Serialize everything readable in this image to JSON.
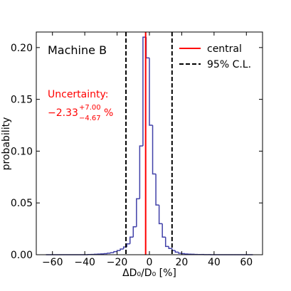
{
  "chart_data": {
    "type": "histogram",
    "panel_label": "Machine B",
    "xlabel": "ΔD₀/D₀ [%]",
    "ylabel": "probability",
    "xlim": [
      -70,
      70
    ],
    "ylim": [
      0,
      0.215
    ],
    "xticks": [
      -60,
      -40,
      -20,
      0,
      20,
      40,
      60
    ],
    "xtick_labels": [
      "−60",
      "−40",
      "−20",
      "0",
      "20",
      "40",
      "60"
    ],
    "yticks": [
      0.0,
      0.05,
      0.1,
      0.15,
      0.2
    ],
    "ytick_labels": [
      "0.00",
      "0.05",
      "0.10",
      "0.15",
      "0.20"
    ],
    "histogram": {
      "color": "#4040a8",
      "bin_edges": [
        -64,
        -62,
        -60,
        -58,
        -56,
        -54,
        -52,
        -50,
        -48,
        -46,
        -44,
        -42,
        -40,
        -38,
        -36,
        -34,
        -32,
        -30,
        -28,
        -26,
        -24,
        -22,
        -20,
        -18,
        -16,
        -14,
        -12,
        -10,
        -8,
        -6,
        -4,
        -2,
        0,
        2,
        4,
        6,
        8,
        10,
        12,
        14,
        16,
        18,
        20,
        22,
        24,
        26,
        28,
        30,
        32,
        34,
        36,
        38,
        40,
        42,
        44,
        46,
        48,
        50,
        52,
        54,
        56,
        58,
        60,
        62,
        64
      ],
      "values": [
        0,
        0,
        0,
        0,
        0,
        0,
        0,
        0,
        0,
        0,
        0,
        0,
        0,
        0.0002,
        0.0003,
        0.0004,
        0.0006,
        0.0008,
        0.001,
        0.0015,
        0.002,
        0.003,
        0.004,
        0.0055,
        0.0075,
        0.0105,
        0.017,
        0.027,
        0.054,
        0.105,
        0.21,
        0.19,
        0.125,
        0.078,
        0.048,
        0.03,
        0.017,
        0.008,
        0.006,
        0.004,
        0.0025,
        0.0015,
        0.001,
        0.0007,
        0.0005,
        0.0004,
        0.0003,
        0.0002,
        0.0002,
        0.0001,
        0.0001,
        0,
        0,
        0,
        0,
        0,
        0,
        0,
        0,
        0,
        0,
        0,
        0,
        0
      ]
    },
    "central": {
      "value": -2.33,
      "color": "#ff0000",
      "label": "central"
    },
    "cl95": {
      "lower": -14.5,
      "upper": 14.0,
      "color": "#000000",
      "label": "95% C.L."
    },
    "uncertainty": {
      "title": "Uncertainty:",
      "value": "−2.33",
      "plus": "+7.00",
      "minus": "−4.67",
      "unit": "%"
    },
    "legend_position": "top-right",
    "grid": false
  }
}
